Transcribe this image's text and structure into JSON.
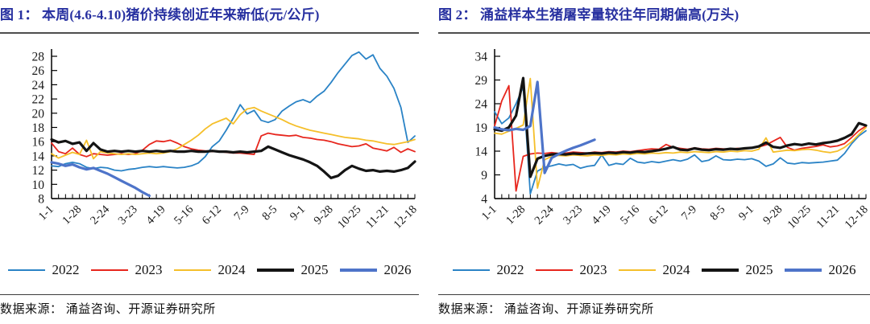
{
  "page": {
    "background": "#ffffff"
  },
  "colors": {
    "title_navy": "#2730A0",
    "axis": "#000000",
    "y2022": "#2A83C6",
    "y2023": "#E7261D",
    "y2024": "#F5BF2A",
    "y2025": "#141414",
    "y2026": "#4E74C9"
  },
  "chart_data": [
    {
      "type": "line",
      "title": "图 1：  本周(4.6-4.10)猪价持续创近年来新低(元/公斤)",
      "source": "数据来源：  涌益咨询、开源证券研究所",
      "unit": "元/公斤",
      "grid": false,
      "legend_position": "bottom",
      "points": 53,
      "x_label_every": 4,
      "x_tick_labels": [
        "1-1",
        "1-28",
        "2-24",
        "3-23",
        "4-19",
        "5-16",
        "6-12",
        "7-9",
        "8-5",
        "9-1",
        "9-28",
        "10-25",
        "11-21",
        "12-18"
      ],
      "ylim": [
        8,
        28
      ],
      "yticks": [
        8,
        10,
        12,
        14,
        16,
        18,
        20,
        22,
        24,
        26,
        28
      ],
      "series": [
        {
          "name": "2022",
          "color": "#2A83C6",
          "width": 1.8,
          "values": [
            12.6,
            12.5,
            12.9,
            13.1,
            12.9,
            12.4,
            12.2,
            12.4,
            12.3,
            12.0,
            11.9,
            12.1,
            12.2,
            12.4,
            12.5,
            12.4,
            12.5,
            12.4,
            12.3,
            12.4,
            12.6,
            13.0,
            13.9,
            15.3,
            16.1,
            17.6,
            19.3,
            21.2,
            19.9,
            20.4,
            19.0,
            18.7,
            19.1,
            20.3,
            21.0,
            21.6,
            21.9,
            21.5,
            22.4,
            23.1,
            24.3,
            25.7,
            26.9,
            28.1,
            28.6,
            27.6,
            28.2,
            26.3,
            25.2,
            23.5,
            20.8,
            15.9,
            16.8
          ]
        },
        {
          "name": "2023",
          "color": "#E7261D",
          "width": 1.8,
          "values": [
            15.8,
            14.6,
            14.3,
            15.1,
            14.2,
            13.9,
            14.3,
            14.2,
            14.1,
            14.2,
            14.3,
            14.2,
            14.3,
            14.8,
            15.6,
            16.1,
            16.0,
            16.2,
            15.8,
            15.3,
            15.0,
            14.8,
            14.7,
            14.6,
            14.6,
            14.5,
            14.4,
            14.4,
            14.3,
            14.2,
            16.8,
            17.2,
            17.0,
            16.9,
            16.8,
            16.9,
            16.6,
            16.5,
            16.3,
            16.2,
            16.0,
            15.7,
            15.5,
            15.3,
            15.4,
            15.7,
            15.1,
            14.9,
            14.7,
            15.2,
            14.5,
            15.0,
            14.6
          ]
        },
        {
          "name": "2024",
          "color": "#F5BF2A",
          "width": 1.8,
          "values": [
            14.3,
            13.7,
            14.1,
            14.5,
            14.2,
            16.2,
            13.6,
            14.6,
            14.4,
            14.3,
            14.2,
            14.3,
            14.2,
            14.3,
            14.4,
            14.3,
            14.4,
            14.6,
            15.0,
            15.6,
            16.2,
            16.9,
            17.8,
            18.5,
            18.9,
            19.3,
            18.5,
            19.8,
            20.6,
            20.8,
            20.3,
            19.9,
            19.5,
            19.1,
            18.6,
            18.2,
            17.9,
            17.6,
            17.4,
            17.2,
            17.0,
            16.8,
            16.6,
            16.5,
            16.4,
            16.2,
            16.1,
            15.9,
            15.7,
            15.6,
            15.8,
            16.0,
            16.3
          ]
        },
        {
          "name": "2025",
          "color": "#141414",
          "width": 3.2,
          "values": [
            16.3,
            15.9,
            16.1,
            15.7,
            15.9,
            14.7,
            15.8,
            14.9,
            14.6,
            14.7,
            14.6,
            14.7,
            14.6,
            14.7,
            14.6,
            14.7,
            14.6,
            14.7,
            14.6,
            14.6,
            14.7,
            14.6,
            14.6,
            14.7,
            14.6,
            14.6,
            14.5,
            14.6,
            14.5,
            14.6,
            14.7,
            15.3,
            14.9,
            14.5,
            14.1,
            13.8,
            13.5,
            13.1,
            12.6,
            11.8,
            10.9,
            11.2,
            12.0,
            12.6,
            12.2,
            11.9,
            12.0,
            11.8,
            11.9,
            11.8,
            12.0,
            12.3,
            13.2
          ]
        },
        {
          "name": "2026",
          "color": "#4E74C9",
          "width": 3.2,
          "values": [
            13.1,
            12.9,
            12.6,
            12.8,
            12.4,
            12.1,
            12.3,
            11.9,
            11.5,
            11.0,
            10.5,
            10.0,
            9.5,
            8.9,
            8.4
          ]
        }
      ]
    },
    {
      "type": "line",
      "title": "图 2：  涌益样本生猪屠宰量较往年同期偏高(万头)",
      "source": "数据来源：  涌益咨询、开源证券研究所",
      "unit": "万头",
      "grid": false,
      "legend_position": "bottom",
      "points": 53,
      "x_label_every": 4,
      "x_tick_labels": [
        "1-1",
        "1-28",
        "2-24",
        "3-23",
        "4-19",
        "5-16",
        "6-12",
        "7-9",
        "8-5",
        "9-1",
        "9-28",
        "10-25",
        "11-21",
        "12-18"
      ],
      "ylim": [
        4,
        34
      ],
      "yticks": [
        4,
        9,
        14,
        19,
        24,
        29,
        34
      ],
      "series": [
        {
          "name": "2022",
          "color": "#2A83C6",
          "width": 1.8,
          "values": [
            22.3,
            19.8,
            21.0,
            24.0,
            27.5,
            5.0,
            9.8,
            10.6,
            10.9,
            11.3,
            11.0,
            11.2,
            10.4,
            10.8,
            11.0,
            13.2,
            11.0,
            11.4,
            11.2,
            12.5,
            11.7,
            11.5,
            11.8,
            11.6,
            11.9,
            12.2,
            11.9,
            12.3,
            13.2,
            11.8,
            12.1,
            13.0,
            12.2,
            12.1,
            12.3,
            12.2,
            12.4,
            11.9,
            10.8,
            11.3,
            12.6,
            11.5,
            11.3,
            11.6,
            11.5,
            11.6,
            11.7,
            11.9,
            12.1,
            13.5,
            15.6,
            17.2,
            18.3
          ]
        },
        {
          "name": "2023",
          "color": "#E7261D",
          "width": 1.8,
          "values": [
            19.3,
            24.6,
            27.8,
            5.6,
            12.9,
            13.4,
            13.6,
            13.5,
            13.7,
            13.5,
            13.6,
            13.8,
            13.7,
            13.6,
            13.8,
            13.7,
            13.9,
            13.8,
            14.0,
            13.9,
            14.1,
            14.3,
            14.5,
            14.4,
            15.4,
            14.8,
            14.6,
            14.4,
            14.7,
            14.5,
            14.4,
            14.6,
            14.5,
            14.4,
            14.6,
            14.5,
            14.7,
            14.9,
            15.3,
            16.1,
            16.9,
            14.8,
            14.2,
            14.6,
            14.8,
            15.0,
            15.3,
            14.9,
            15.1,
            15.6,
            16.9,
            18.3,
            19.3
          ]
        },
        {
          "name": "2024",
          "color": "#F5BF2A",
          "width": 1.8,
          "values": [
            17.8,
            17.6,
            18.2,
            18.8,
            19.5,
            29.3,
            6.2,
            12.2,
            12.9,
            13.1,
            13.0,
            13.2,
            13.1,
            13.0,
            13.2,
            13.1,
            13.3,
            13.2,
            13.4,
            13.3,
            13.5,
            13.4,
            13.6,
            13.5,
            13.7,
            13.6,
            13.8,
            13.7,
            13.9,
            13.8,
            13.7,
            13.9,
            13.8,
            14.0,
            13.9,
            14.1,
            14.0,
            14.4,
            16.8,
            13.8,
            14.0,
            14.2,
            14.1,
            14.3,
            14.4,
            14.2,
            13.9,
            13.7,
            14.0,
            14.8,
            16.0,
            17.5,
            19.0
          ]
        },
        {
          "name": "2025",
          "color": "#141414",
          "width": 3.2,
          "values": [
            18.6,
            18.3,
            19.0,
            21.5,
            29.4,
            8.6,
            12.4,
            13.0,
            13.3,
            13.4,
            13.3,
            13.5,
            13.4,
            13.5,
            13.6,
            13.5,
            13.7,
            13.6,
            13.8,
            13.7,
            13.9,
            13.8,
            14.0,
            14.2,
            14.5,
            14.9,
            14.3,
            14.2,
            14.6,
            14.3,
            14.2,
            14.4,
            14.3,
            14.5,
            14.4,
            14.6,
            14.7,
            15.0,
            15.8,
            14.9,
            14.7,
            15.2,
            15.5,
            15.3,
            15.6,
            15.4,
            15.7,
            15.9,
            16.2,
            16.8,
            17.6,
            19.9,
            19.4
          ]
        },
        {
          "name": "2026",
          "color": "#4E74C9",
          "width": 3.2,
          "values": [
            19.0,
            18.6,
            18.4,
            18.7,
            18.5,
            19.3,
            28.6,
            9.4,
            12.6,
            13.4,
            14.1,
            14.7,
            15.2,
            15.8,
            16.4
          ]
        }
      ]
    }
  ]
}
